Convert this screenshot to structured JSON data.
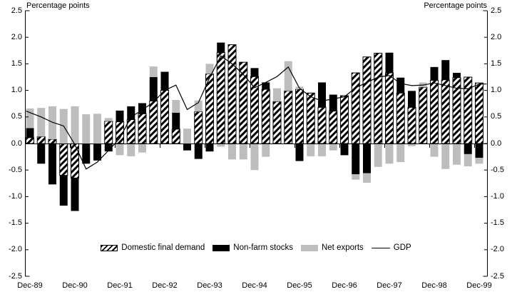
{
  "chart_data": {
    "type": "bar",
    "subtype": "stacked-bars-with-line-overlay",
    "title": "",
    "ylabel_left": "Percentage points",
    "ylabel_right": "Percentage points",
    "ylim": [
      -2.5,
      2.5
    ],
    "y_tick_step": 0.5,
    "y_tick_labels": [
      "2.5",
      "2.0",
      "1.5",
      "1.0",
      "0.5",
      "0.0",
      "-0.5",
      "-1.0",
      "-1.5",
      "-2.0",
      "-2.5"
    ],
    "x_tick_labels": [
      "Dec-89",
      "Dec-90",
      "Dec-91",
      "Dec-92",
      "Dec-93",
      "Dec-94",
      "Dec-95",
      "Dec-96",
      "Dec-97",
      "Dec-98",
      "Dec-99"
    ],
    "grid": false,
    "legend_position": "bottom-center",
    "colors": {
      "domestic_final_demand": "hatched-black-on-white",
      "non_farm_stocks": "#000000",
      "net_exports": "#bdbdbd",
      "gdp_line": "#000000",
      "background": "#ffffff"
    },
    "categories": [
      "Dec-89",
      "Mar-90",
      "Jun-90",
      "Sep-90",
      "Dec-90",
      "Mar-91",
      "Jun-91",
      "Sep-91",
      "Dec-91",
      "Mar-92",
      "Jun-92",
      "Sep-92",
      "Dec-92",
      "Mar-93",
      "Jun-93",
      "Sep-93",
      "Dec-93",
      "Mar-94",
      "Jun-94",
      "Sep-94",
      "Dec-94",
      "Mar-95",
      "Jun-95",
      "Sep-95",
      "Dec-95",
      "Mar-96",
      "Jun-96",
      "Sep-96",
      "Dec-96",
      "Mar-97",
      "Jun-97",
      "Sep-97",
      "Dec-97",
      "Mar-98",
      "Jun-98",
      "Sep-98",
      "Dec-98",
      "Mar-99",
      "Jun-99",
      "Sep-99",
      "Dec-99"
    ],
    "series": [
      {
        "name": "Domestic final demand",
        "style": "hatched-bar",
        "values": [
          0.11,
          0.13,
          0.08,
          -0.6,
          -0.65,
          0,
          0,
          0.42,
          0.41,
          0.45,
          0.56,
          0.8,
          1.0,
          0.27,
          0,
          0.6,
          1.31,
          1.71,
          1.86,
          1.53,
          1.26,
          1.02,
          0.79,
          0.99,
          1.02,
          0.95,
          0.68,
          0.61,
          0.9,
          1.33,
          1.63,
          1.7,
          1.33,
          0.95,
          0.68,
          1.06,
          1.19,
          1.2,
          1.24,
          1.25,
          1.14
        ]
      },
      {
        "name": "Non-farm stocks",
        "style": "black-bar",
        "values": [
          0.18,
          -0.38,
          -0.77,
          -0.57,
          -0.62,
          -0.38,
          -0.32,
          -0.15,
          0.21,
          0.25,
          0.2,
          0.45,
          0.35,
          0.31,
          -0.13,
          -0.29,
          -0.15,
          0.19,
          0,
          0,
          0.16,
          0.13,
          0,
          0,
          -0.33,
          0,
          0.47,
          0.31,
          -0.22,
          -0.58,
          -0.56,
          0,
          0.38,
          0.29,
          0.31,
          0,
          0.25,
          0.37,
          0.09,
          -0.2,
          -0.27
        ]
      },
      {
        "name": "Net exports",
        "style": "gray-bar",
        "values": [
          0.37,
          0.54,
          0.62,
          0.65,
          0.7,
          0.55,
          0.56,
          0.06,
          -0.22,
          -0.24,
          -0.17,
          0.2,
          0,
          0.24,
          0.28,
          0.21,
          0.19,
          -0.06,
          -0.3,
          -0.3,
          -0.5,
          -0.25,
          0.25,
          0.56,
          0.05,
          -0.24,
          -0.24,
          -0.13,
          0,
          -0.1,
          -0.18,
          -0.44,
          -0.38,
          -0.35,
          -0.05,
          0.09,
          -0.25,
          -0.48,
          -0.4,
          -0.23,
          -0.11
        ]
      },
      {
        "name": "GDP",
        "style": "line",
        "values": [
          0.61,
          0.5,
          0.4,
          0.33,
          -0.02,
          -0.48,
          -0.35,
          -0.13,
          0.1,
          0.5,
          0.63,
          0.78,
          1.0,
          1.1,
          0.64,
          0.77,
          1.24,
          1.65,
          1.5,
          1.3,
          1.05,
          1.15,
          1.26,
          1.44,
          1.04,
          0.88,
          0.8,
          0.84,
          0.88,
          1.05,
          1.15,
          1.25,
          1.28,
          1.13,
          1.09,
          1.1,
          1.14,
          1.09,
          1.04,
          1.03,
          1.12
        ]
      }
    ]
  },
  "legend": {
    "items": [
      {
        "label": "Domestic final demand"
      },
      {
        "label": "Non-farm stocks"
      },
      {
        "label": "Net exports"
      },
      {
        "label": "GDP"
      }
    ]
  }
}
